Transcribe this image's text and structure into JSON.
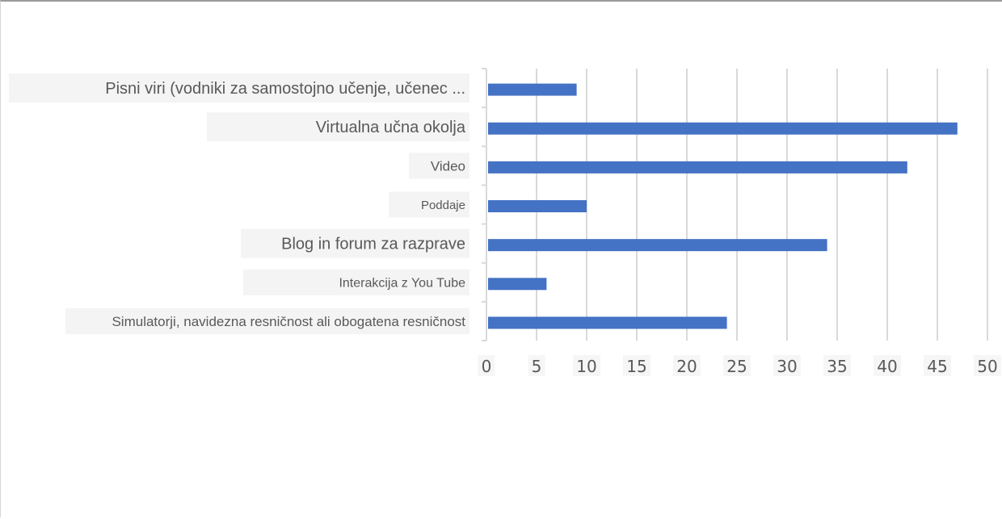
{
  "chart_data": {
    "type": "bar",
    "orientation": "horizontal",
    "categories": [
      "Pisni viri (vodniki za samostojno učenje, učenec ...",
      "Virtualna učna okolja",
      "Video",
      "Poddaje",
      "Blog in forum za razprave",
      "Interakcija z You Tube",
      "Simulatorji, navidezna resničnost ali obogatena resničnost"
    ],
    "values": [
      9,
      47,
      42,
      10,
      34,
      6,
      24
    ],
    "xlim": [
      0,
      50
    ],
    "xticks": [
      "0",
      "5",
      "10",
      "15",
      "20",
      "25",
      "30",
      "35",
      "40",
      "45",
      "50"
    ],
    "grid": true,
    "legend": "none",
    "title": "",
    "xlabel": "",
    "ylabel": "",
    "colors": {
      "bar": "#4472C4",
      "grid": "#d9d9d9",
      "text": "#595959"
    }
  }
}
